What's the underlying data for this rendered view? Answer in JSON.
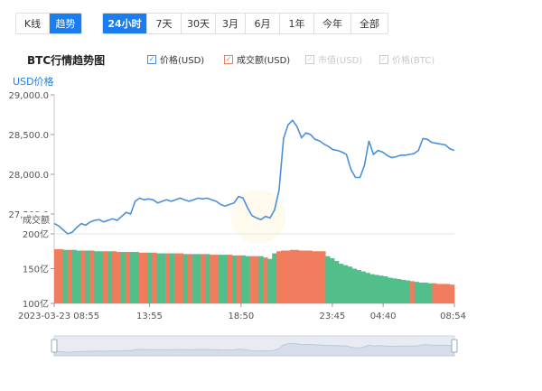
{
  "view_tabs": [
    {
      "label": "K线",
      "active": false
    },
    {
      "label": "趋势",
      "active": true
    }
  ],
  "range_tabs": [
    {
      "label": "24小时",
      "active": true
    },
    {
      "label": "7天",
      "active": false
    },
    {
      "label": "30天",
      "active": false
    },
    {
      "label": "3月",
      "active": false
    },
    {
      "label": "6月",
      "active": false
    },
    {
      "label": "1年",
      "active": false
    },
    {
      "label": "今年",
      "active": false
    },
    {
      "label": "全部",
      "active": false
    }
  ],
  "chart_title": "BTC行情趋势图",
  "legend": [
    {
      "label": "价格(USD)",
      "color": "#4a90d9",
      "checked": true,
      "enabled": true
    },
    {
      "label": "成交额(USD)",
      "color": "#f07c5e",
      "checked": true,
      "enabled": true
    },
    {
      "label": "市值(USD)",
      "color": "#cccccc",
      "checked": true,
      "enabled": false
    },
    {
      "label": "价格(BTC)",
      "color": "#cccccc",
      "checked": true,
      "enabled": false
    }
  ],
  "colors": {
    "accent": "#1a7ef0",
    "price_line": "#4a90d9",
    "volume_up": "#52be8a",
    "volume_down": "#f07c5e",
    "slider_fill": "#d6dde8"
  },
  "chart_data": {
    "type": "line",
    "title": "BTC行情趋势图",
    "price_axis_label": "USD价格",
    "volume_axis_label": "成交额",
    "price_ylim": [
      27250,
      29000
    ],
    "price_ticks": [
      "29,000.0",
      "28,500.0",
      "28,000.0",
      "27,500.0"
    ],
    "volume_ylim": [
      100,
      200
    ],
    "volume_ticks": [
      "200亿",
      "150亿",
      "100亿"
    ],
    "x_tick_labels": [
      "2023-03-23 08:55",
      "13:55",
      "18:50",
      "23:45",
      "04:40",
      "08:54"
    ],
    "price_series": {
      "name": "价格(USD)",
      "values": [
        27380,
        27350,
        27300,
        27250,
        27270,
        27330,
        27380,
        27360,
        27400,
        27420,
        27430,
        27400,
        27420,
        27440,
        27420,
        27470,
        27520,
        27500,
        27660,
        27700,
        27680,
        27690,
        27680,
        27640,
        27660,
        27680,
        27660,
        27680,
        27700,
        27680,
        27660,
        27680,
        27700,
        27690,
        27700,
        27680,
        27660,
        27620,
        27600,
        27620,
        27640,
        27720,
        27700,
        27580,
        27480,
        27450,
        27430,
        27470,
        27450,
        27550,
        27800,
        28450,
        28620,
        28680,
        28600,
        28460,
        28520,
        28500,
        28440,
        28420,
        28380,
        28350,
        28310,
        28300,
        28280,
        28250,
        28060,
        27960,
        27960,
        28110,
        28420,
        28250,
        28300,
        28280,
        28240,
        28210,
        28220,
        28240,
        28240,
        28250,
        28260,
        28300,
        28450,
        28440,
        28400,
        28390,
        28380,
        28370,
        28320,
        28300
      ]
    },
    "volume_series": {
      "name": "成交额(USD)",
      "values": [
        178,
        178,
        177,
        177,
        177,
        176,
        176,
        176,
        176,
        175,
        175,
        175,
        175,
        175,
        174,
        174,
        174,
        174,
        174,
        173,
        173,
        173,
        173,
        172,
        172,
        172,
        172,
        172,
        172,
        171,
        171,
        171,
        171,
        171,
        171,
        170,
        170,
        170,
        170,
        170,
        169,
        169,
        169,
        168,
        168,
        168,
        168,
        166,
        164,
        172,
        175,
        176,
        176,
        177,
        177,
        176,
        176,
        176,
        175,
        175,
        175,
        168,
        165,
        161,
        157,
        155,
        153,
        150,
        148,
        146,
        144,
        142,
        141,
        140,
        139,
        137,
        136,
        135,
        134,
        133,
        132,
        131,
        130,
        130,
        129,
        129,
        128,
        128,
        128,
        127
      ],
      "down_flags": [
        1,
        1,
        0,
        1,
        0,
        0,
        1,
        0,
        1,
        0,
        0,
        1,
        0,
        1,
        1,
        0,
        1,
        0,
        0,
        1,
        1,
        0,
        1,
        0,
        0,
        1,
        0,
        1,
        1,
        0,
        1,
        0,
        0,
        1,
        0,
        1,
        1,
        0,
        0,
        1,
        0,
        1,
        0,
        0,
        1,
        1,
        0,
        1,
        0,
        0,
        1,
        1,
        1,
        1,
        1,
        1,
        1,
        1,
        1,
        1,
        1,
        0,
        0,
        0,
        0,
        0,
        0,
        0,
        0,
        0,
        0,
        0,
        0,
        0,
        0,
        0,
        0,
        0,
        0,
        0,
        1,
        0,
        0,
        0,
        0,
        1,
        1,
        1,
        1,
        1
      ]
    }
  }
}
